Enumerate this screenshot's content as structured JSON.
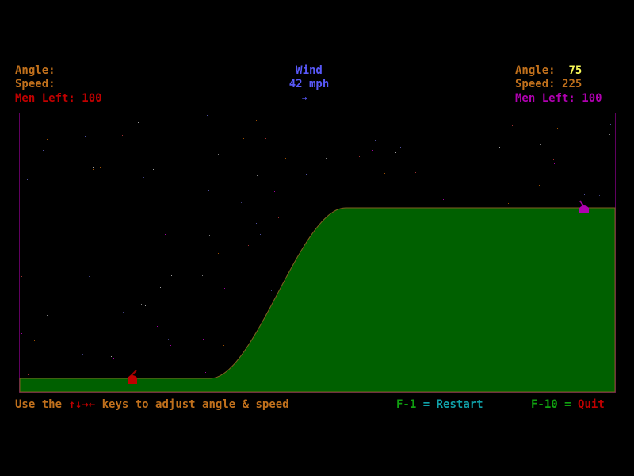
{
  "player_left": {
    "angle_label": "Angle:",
    "angle_value": "",
    "speed_label": "Speed:",
    "speed_value": "",
    "men_left_label": "Men Left:",
    "men_left_value": "100",
    "color": "#c00000"
  },
  "wind": {
    "title": "Wind",
    "speed": "42 mph",
    "direction_arrow": "→",
    "direction": "right"
  },
  "player_right": {
    "angle_label": "Angle:",
    "angle_value": "75",
    "speed_label": "Speed:",
    "speed_value": "225",
    "men_left_label": "Men Left:",
    "men_left_value": "100",
    "color": "#b000b0"
  },
  "footer": {
    "instructions_prefix": "Use the",
    "arrow_keys": "↑↓→←",
    "instructions_suffix": "keys to adjust angle & speed",
    "restart_key": "F-1",
    "restart_eq": "=",
    "restart_label": "Restart",
    "quit_key": "F-10",
    "quit_eq": "=",
    "quit_label": "Quit"
  },
  "colors": {
    "terrain": "#006000",
    "terrain_edge": "#806020",
    "border": "#600060",
    "text_orange": "#c0701c",
    "wind_blue": "#5858f8"
  }
}
